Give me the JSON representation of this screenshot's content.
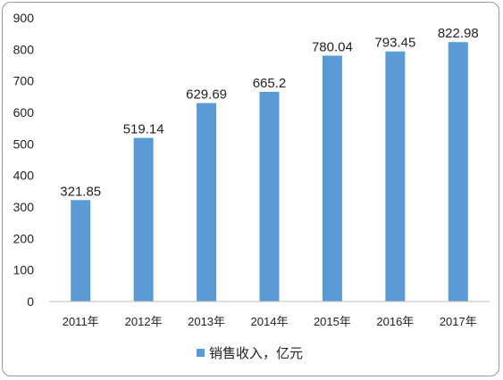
{
  "chart_data": {
    "type": "bar",
    "title": "",
    "xlabel": "",
    "ylabel": "",
    "categories": [
      "2011年",
      "2012年",
      "2013年",
      "2014年",
      "2015年",
      "2016年",
      "2017年"
    ],
    "series": [
      {
        "name": "销售收入，亿元",
        "values": [
          321.85,
          519.14,
          629.69,
          665.2,
          780.04,
          793.45,
          822.98
        ],
        "data_labels": [
          "321.85",
          "519.14",
          "629.69",
          "665.2",
          "780.04",
          "793.45",
          "822.98"
        ]
      }
    ],
    "ylim": [
      0,
      900
    ],
    "yticks": [
      0,
      100,
      200,
      300,
      400,
      500,
      600,
      700,
      800,
      900
    ],
    "grid": false,
    "legend": "bottom",
    "colors": {
      "bar": "#5b9bd5",
      "axis": "#bfbfbf",
      "frame": "#9a9a9a"
    }
  }
}
